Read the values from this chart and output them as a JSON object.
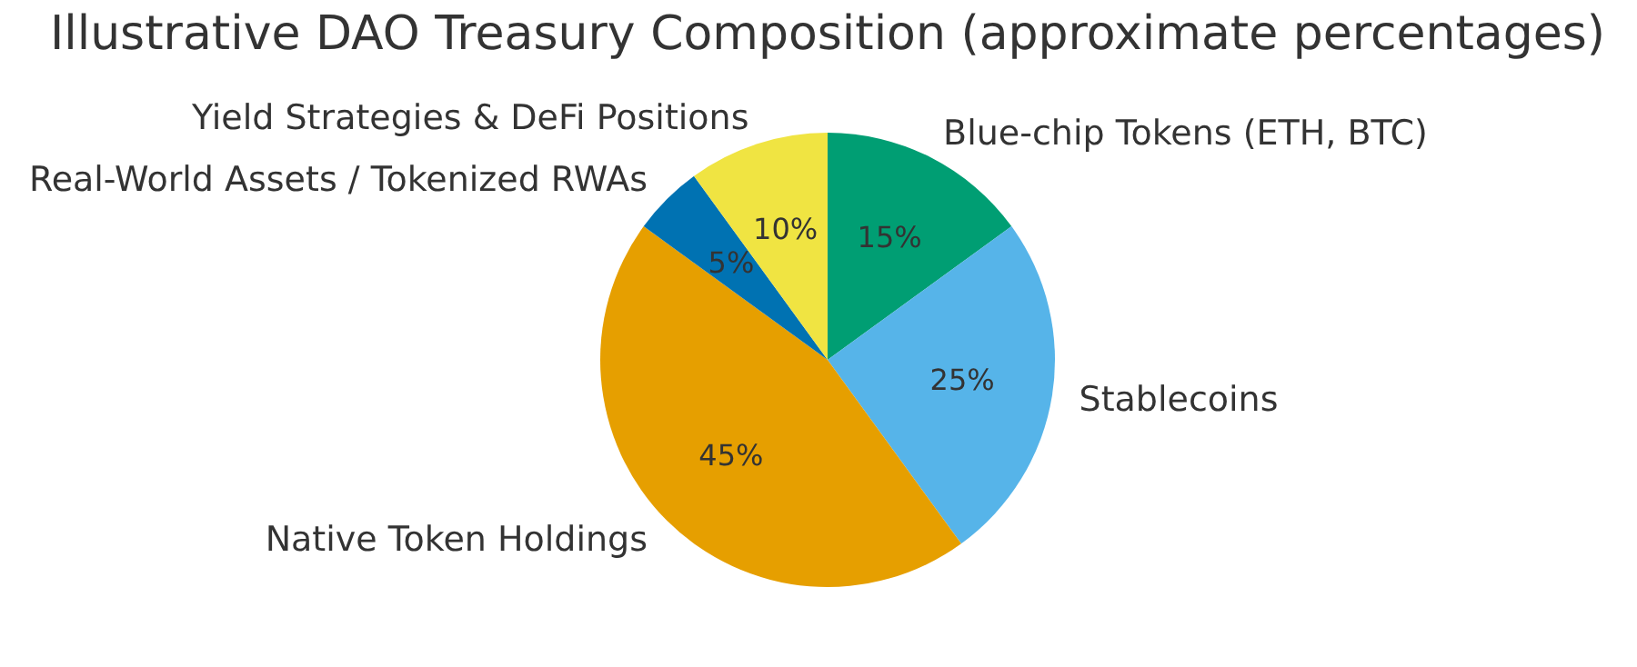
{
  "chart_data": {
    "type": "pie",
    "title": "Illustrative DAO Treasury Composition (approximate percentages)",
    "categories": [
      "Blue-chip Tokens (ETH, BTC)",
      "Stablecoins",
      "Native Token Holdings",
      "Real-World Assets / Tokenized RWAs",
      "Yield Strategies & DeFi Positions"
    ],
    "values": [
      15,
      25,
      45,
      5,
      10
    ],
    "colors": [
      "#009e73",
      "#56b4e9",
      "#e69f00",
      "#0072b2",
      "#f0e442"
    ],
    "value_labels": [
      "15%",
      "25%",
      "45%",
      "5%",
      "10%"
    ],
    "legend": false
  }
}
